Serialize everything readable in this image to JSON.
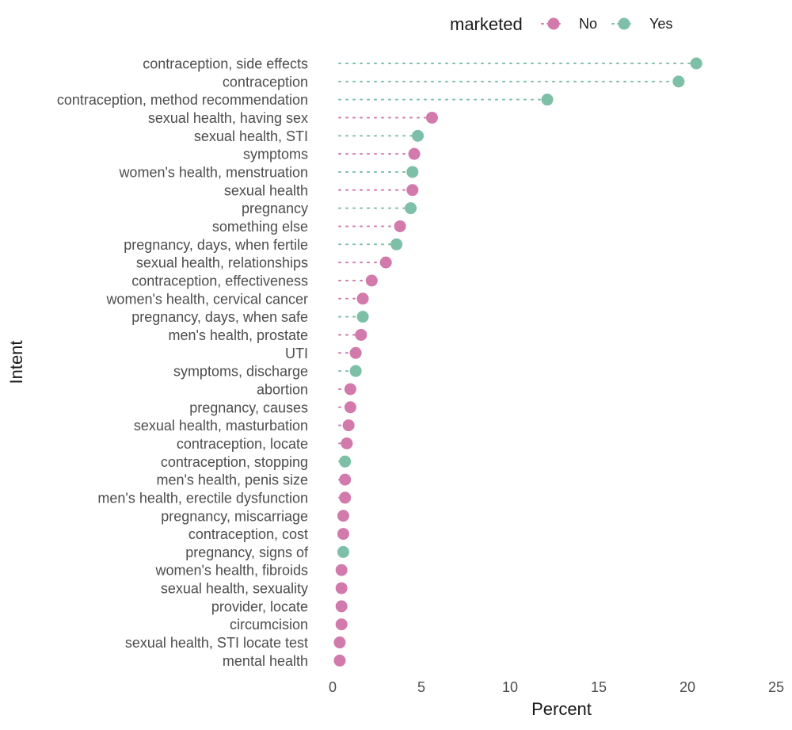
{
  "chart_data": {
    "type": "scatter",
    "xlabel": "Percent",
    "ylabel": "Intent",
    "xlim": [
      0,
      25
    ],
    "x_ticks": [
      0,
      5,
      10,
      15,
      20,
      25
    ],
    "grid": false,
    "legend": {
      "title": "marketed",
      "placement": "top",
      "entries": [
        {
          "name": "No",
          "color": "#d17aab"
        },
        {
          "name": "Yes",
          "color": "#7dbfa7"
        }
      ]
    },
    "categories": [
      "contraception, side effects",
      "contraception",
      "contraception, method recommendation",
      "sexual health, having sex",
      "sexual health, STI",
      "symptoms",
      "women's health, menstruation",
      "sexual health",
      "pregnancy",
      "something else",
      "pregnancy, days, when fertile",
      "sexual health, relationships",
      "contraception, effectiveness",
      "women's health, cervical cancer",
      "pregnancy, days, when safe",
      "men's health, prostate",
      "UTI",
      "symptoms, discharge",
      "abortion",
      "pregnancy, causes",
      "sexual health, masturbation",
      "contraception, locate",
      "contraception, stopping",
      "men's health, penis size",
      "men's health, erectile dysfunction",
      "pregnancy, miscarriage",
      "contraception, cost",
      "pregnancy, signs of",
      "women's health, fibroids",
      "sexual health, sexuality",
      "provider, locate",
      "circumcision",
      "sexual health, STI locate test",
      "mental health"
    ],
    "values": [
      20.5,
      19.5,
      12.1,
      5.6,
      4.8,
      4.6,
      4.5,
      4.5,
      4.4,
      3.8,
      3.6,
      3.0,
      2.2,
      1.7,
      1.7,
      1.6,
      1.3,
      1.3,
      1.0,
      1.0,
      0.9,
      0.8,
      0.7,
      0.7,
      0.7,
      0.6,
      0.6,
      0.6,
      0.5,
      0.5,
      0.5,
      0.5,
      0.4,
      0.4
    ],
    "marketed": [
      "Yes",
      "Yes",
      "Yes",
      "No",
      "Yes",
      "No",
      "Yes",
      "No",
      "Yes",
      "No",
      "Yes",
      "No",
      "No",
      "No",
      "Yes",
      "No",
      "No",
      "Yes",
      "No",
      "No",
      "No",
      "No",
      "Yes",
      "No",
      "No",
      "No",
      "No",
      "Yes",
      "No",
      "No",
      "No",
      "No",
      "No",
      "No"
    ]
  }
}
